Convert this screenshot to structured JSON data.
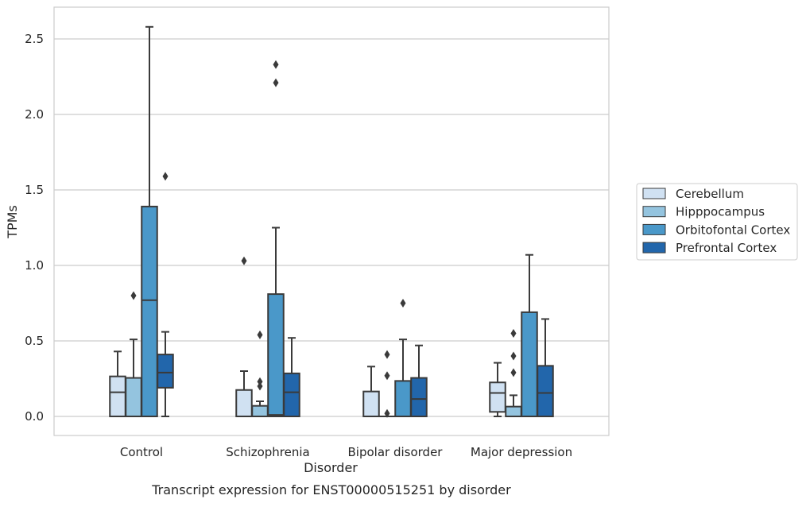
{
  "caption": "Transcript expression for ENST00000515251 by disorder",
  "chart_data": {
    "type": "box",
    "xlabel": "Disorder",
    "ylabel": "TPMs",
    "ylim": [
      -0.125,
      2.71
    ],
    "yticks": [
      0.0,
      0.5,
      1.0,
      1.5,
      2.0,
      2.5
    ],
    "ytick_labels": [
      "0.0",
      "0.5",
      "1.0",
      "1.5",
      "2.0",
      "2.5"
    ],
    "grid": "horizontal",
    "legend_position": "right",
    "categories": [
      "Control",
      "Schizophrenia",
      "Bipolar disorder",
      "Major depression"
    ],
    "series": [
      {
        "name": "Cerebellum",
        "color": "#d0e1f2",
        "boxes": [
          {
            "whislo": 0.0,
            "q1": 0.0,
            "med": 0.16,
            "q3": 0.265,
            "whishi": 0.43,
            "fliers": []
          },
          {
            "whislo": 0.0,
            "q1": 0.0,
            "med": 0.0,
            "q3": 0.175,
            "whishi": 0.3,
            "fliers": [
              1.03
            ]
          },
          {
            "whislo": 0.0,
            "q1": 0.0,
            "med": 0.0,
            "q3": 0.165,
            "whishi": 0.33,
            "fliers": []
          },
          {
            "whislo": 0.0,
            "q1": 0.03,
            "med": 0.155,
            "q3": 0.225,
            "whishi": 0.355,
            "fliers": []
          }
        ]
      },
      {
        "name": "Hipppocampus",
        "color": "#94c4df",
        "boxes": [
          {
            "whislo": 0.0,
            "q1": 0.0,
            "med": 0.0,
            "q3": 0.255,
            "whishi": 0.51,
            "fliers": [
              0.8
            ]
          },
          {
            "whislo": 0.0,
            "q1": 0.0,
            "med": 0.0,
            "q3": 0.07,
            "whishi": 0.1,
            "fliers": [
              0.2,
              0.23,
              0.54
            ]
          },
          {
            "whislo": 0.0,
            "q1": 0.0,
            "med": 0.0,
            "q3": 0.0,
            "whishi": 0.0,
            "fliers": [
              0.02,
              0.27,
              0.41
            ]
          },
          {
            "whislo": 0.0,
            "q1": 0.0,
            "med": 0.0,
            "q3": 0.065,
            "whishi": 0.14,
            "fliers": [
              0.29,
              0.4,
              0.55
            ]
          }
        ]
      },
      {
        "name": "Orbitofontal Cortex",
        "color": "#4a98c9",
        "boxes": [
          {
            "whislo": 0.0,
            "q1": 0.0,
            "med": 0.77,
            "q3": 1.39,
            "whishi": 2.58,
            "fliers": []
          },
          {
            "whislo": 0.0,
            "q1": 0.0,
            "med": 0.01,
            "q3": 0.81,
            "whishi": 1.25,
            "fliers": [
              2.21,
              2.33
            ]
          },
          {
            "whislo": 0.0,
            "q1": 0.0,
            "med": 0.0,
            "q3": 0.235,
            "whishi": 0.51,
            "fliers": [
              0.75
            ]
          },
          {
            "whislo": 0.0,
            "q1": 0.0,
            "med": 0.0,
            "q3": 0.69,
            "whishi": 1.07,
            "fliers": []
          }
        ]
      },
      {
        "name": "Prefrontal Cortex",
        "color": "#2266ab",
        "boxes": [
          {
            "whislo": 0.0,
            "q1": 0.19,
            "med": 0.29,
            "q3": 0.41,
            "whishi": 0.56,
            "fliers": [
              1.59
            ]
          },
          {
            "whislo": 0.0,
            "q1": 0.0,
            "med": 0.16,
            "q3": 0.285,
            "whishi": 0.52,
            "fliers": []
          },
          {
            "whislo": 0.0,
            "q1": 0.0,
            "med": 0.115,
            "q3": 0.255,
            "whishi": 0.47,
            "fliers": []
          },
          {
            "whislo": 0.0,
            "q1": 0.0,
            "med": 0.155,
            "q3": 0.335,
            "whishi": 0.645,
            "fliers": []
          }
        ]
      }
    ]
  }
}
